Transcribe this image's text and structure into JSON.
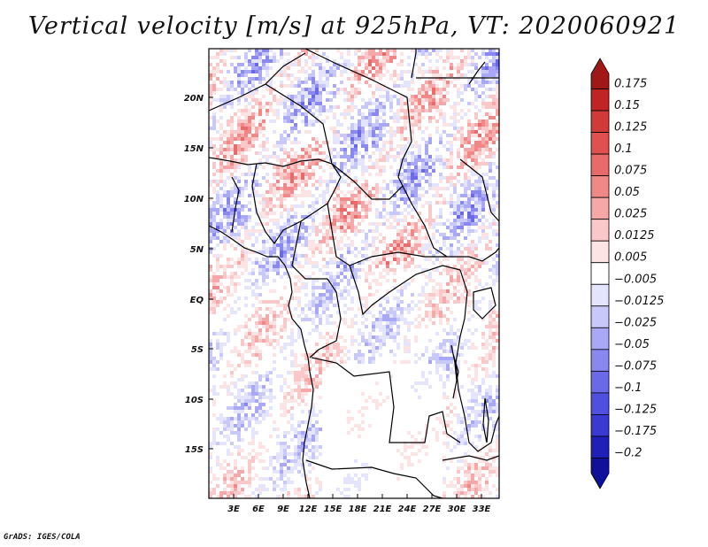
{
  "title": "Vertical velocity [m/s] at 925hPa, VT: 2020060921",
  "credit": "GrADS: IGES/COLA",
  "map": {
    "lon_range": [
      0,
      35
    ],
    "lat_range": [
      -20,
      25
    ],
    "lat_ticks": [
      "20N",
      "15N",
      "10N",
      "5N",
      "EQ",
      "5S",
      "10S",
      "15S"
    ],
    "lon_ticks": [
      "3E",
      "6E",
      "9E",
      "12E",
      "15E",
      "18E",
      "21E",
      "24E",
      "27E",
      "30E",
      "33E"
    ]
  },
  "colorbar": {
    "levels": [
      "0.175",
      "0.15",
      "0.125",
      "0.1",
      "0.075",
      "0.05",
      "0.025",
      "0.0125",
      "0.005",
      "-0.005",
      "-0.0125",
      "-0.025",
      "-0.05",
      "-0.075",
      "-0.1",
      "-0.125",
      "-0.175",
      "-0.2"
    ],
    "colors": [
      "#a01818",
      "#c02424",
      "#d23a3a",
      "#e05050",
      "#e86a6a",
      "#f08888",
      "#f6a8a8",
      "#fac8c8",
      "#fde4e4",
      "#ffffff",
      "#e4e4fd",
      "#c8c8fa",
      "#a8a8f6",
      "#8888f0",
      "#6a6ae8",
      "#5050e0",
      "#3a3ad2",
      "#2020b8",
      "#10109a"
    ]
  }
}
